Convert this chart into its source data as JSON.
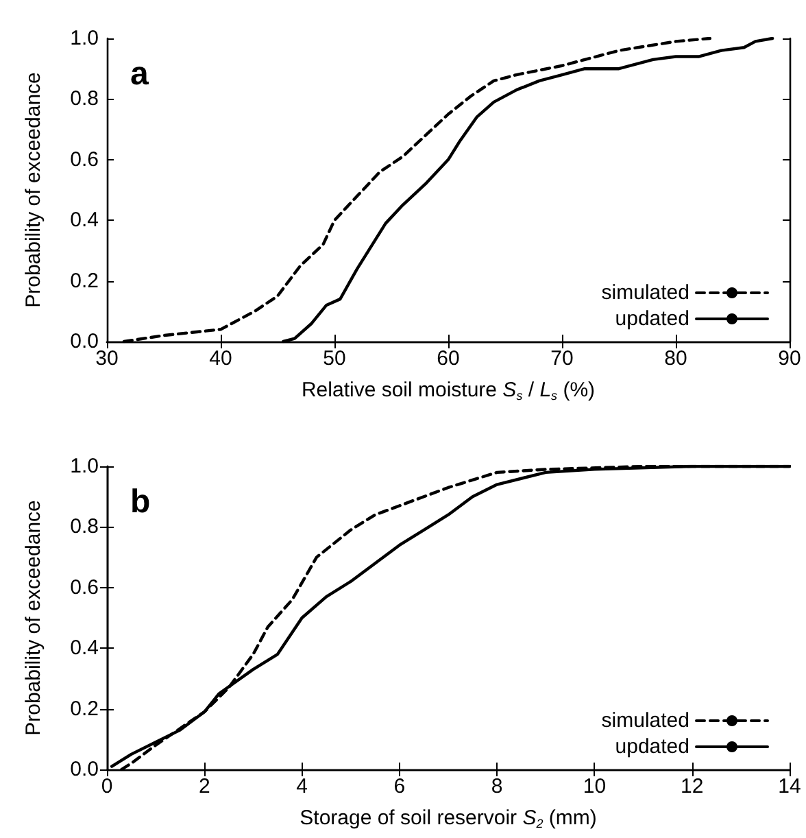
{
  "chart_data": [
    {
      "type": "line",
      "xlabel": "Relative soil moisture S$_{s}$ / L$_{s}$ (%)",
      "ylabel": "Probability of exceedance",
      "annotations": [
        "a"
      ],
      "xlim": [
        30,
        90
      ],
      "xticks": [
        30,
        40,
        50,
        60,
        70,
        80,
        90
      ],
      "ylim": [
        0,
        1
      ],
      "yticks": [
        {
          "value": 0,
          "label": "0.0"
        },
        {
          "value": 0.2,
          "label": "0.2"
        },
        {
          "value": 0.4,
          "label": "0.4"
        },
        {
          "value": 0.6,
          "label": "0.6"
        },
        {
          "value": 0.8,
          "label": "0.8"
        },
        {
          "value": 1,
          "label": "1.0"
        }
      ],
      "grid": false,
      "legend": "bottom right",
      "marker": "none",
      "series": [
        {
          "name": "simulated",
          "color": "#000000",
          "line_style": "dashed",
          "x": [
            31.5,
            35,
            40,
            43,
            45,
            47,
            49,
            50,
            52,
            54,
            56,
            58,
            60,
            62,
            64,
            66,
            70,
            73,
            75,
            80,
            83
          ],
          "values": [
            0,
            0.02,
            0.04,
            0.1,
            0.15,
            0.25,
            0.32,
            0.4,
            0.48,
            0.56,
            0.61,
            0.68,
            0.75,
            0.81,
            0.86,
            0.88,
            0.91,
            0.94,
            0.96,
            0.99,
            1.0
          ]
        },
        {
          "name": "updated",
          "color": "#000000",
          "line_style": "solid",
          "x": [
            45.5,
            46.5,
            48,
            49.3,
            50.5,
            52,
            53,
            54.5,
            56,
            58,
            60,
            61,
            62.5,
            64,
            66,
            68,
            70,
            72,
            75,
            78,
            80,
            82,
            84,
            86,
            87,
            88.5
          ],
          "values": [
            0,
            0.01,
            0.06,
            0.12,
            0.14,
            0.24,
            0.3,
            0.39,
            0.45,
            0.52,
            0.6,
            0.66,
            0.74,
            0.79,
            0.83,
            0.86,
            0.88,
            0.9,
            0.9,
            0.93,
            0.94,
            0.94,
            0.96,
            0.97,
            0.99,
            1.0
          ]
        }
      ]
    },
    {
      "type": "line",
      "xlabel": "Storage of soil reservoir S$_{2}$ (mm)",
      "ylabel": "Probability of exceedance",
      "annotations": [
        "b"
      ],
      "xlim": [
        0,
        14
      ],
      "xticks": [
        0,
        2,
        4,
        6,
        8,
        10,
        12,
        14
      ],
      "ylim": [
        0,
        1
      ],
      "yticks": [
        {
          "value": 0,
          "label": "0.0"
        },
        {
          "value": 0.2,
          "label": "0.2"
        },
        {
          "value": 0.4,
          "label": "0.4"
        },
        {
          "value": 0.6,
          "label": "0.6"
        },
        {
          "value": 0.8,
          "label": "0.8"
        },
        {
          "value": 1,
          "label": "1.0"
        }
      ],
      "grid": false,
      "legend": "bottom right",
      "marker": "none",
      "series": [
        {
          "name": "simulated",
          "color": "#000000",
          "line_style": "dashed",
          "x": [
            0.3,
            0.5,
            1,
            2,
            2.5,
            3,
            3.3,
            3.8,
            4.3,
            5,
            5.5,
            6,
            7,
            8,
            9,
            11,
            14
          ],
          "values": [
            0,
            0.02,
            0.08,
            0.19,
            0.27,
            0.38,
            0.47,
            0.56,
            0.7,
            0.79,
            0.84,
            0.87,
            0.93,
            0.98,
            0.99,
            1.0,
            1.0
          ]
        },
        {
          "name": "updated",
          "color": "#000000",
          "line_style": "solid",
          "x": [
            0.1,
            0.5,
            1,
            1.5,
            2,
            2.3,
            3,
            3.5,
            4,
            4.5,
            5,
            5.5,
            6,
            6.5,
            7,
            7.5,
            8,
            9,
            10,
            12,
            14
          ],
          "values": [
            0.01,
            0.05,
            0.09,
            0.13,
            0.19,
            0.25,
            0.33,
            0.38,
            0.5,
            0.57,
            0.62,
            0.68,
            0.74,
            0.79,
            0.84,
            0.9,
            0.94,
            0.98,
            0.99,
            1.0,
            1.0
          ]
        }
      ]
    }
  ]
}
